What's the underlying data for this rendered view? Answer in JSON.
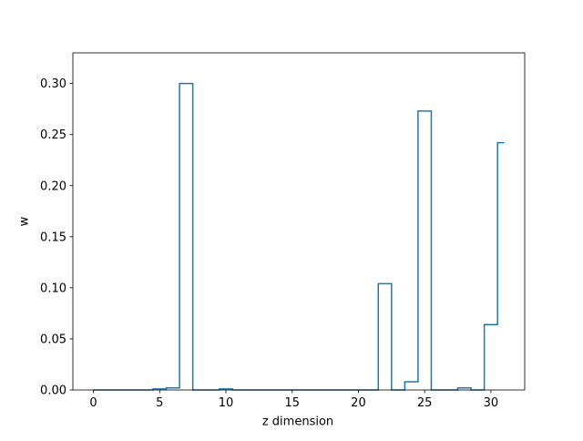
{
  "chart_data": {
    "type": "line",
    "drawstyle": "steps-mid",
    "title": "",
    "xlabel": "z dimension",
    "ylabel": "w",
    "xlim": [
      -1.55,
      32.55
    ],
    "ylim": [
      0,
      0.33
    ],
    "grid": false,
    "x_ticks": [
      0,
      5,
      10,
      15,
      20,
      25,
      30
    ],
    "x_tick_labels": [
      "0",
      "5",
      "10",
      "15",
      "20",
      "25",
      "30"
    ],
    "y_ticks": [
      0,
      0.05,
      0.1,
      0.15,
      0.2,
      0.25,
      0.3
    ],
    "y_tick_labels": [
      "0.00",
      "0.05",
      "0.10",
      "0.15",
      "0.20",
      "0.25",
      "0.30"
    ],
    "series": [
      {
        "color": "#1f77b4",
        "x": [
          0,
          1,
          2,
          3,
          4,
          5,
          6,
          7,
          8,
          9,
          10,
          11,
          12,
          13,
          14,
          15,
          16,
          17,
          18,
          19,
          20,
          21,
          22,
          23,
          24,
          25,
          26,
          27,
          28,
          29,
          30,
          31
        ],
        "y": [
          0,
          0,
          0,
          0,
          0,
          0.001,
          0.002,
          0.3,
          0,
          0,
          0.001,
          0,
          0,
          0,
          0,
          0,
          0,
          0,
          0,
          0,
          0,
          0,
          0.104,
          0,
          0.008,
          0.273,
          0,
          0,
          0.002,
          0,
          0.064,
          0.242
        ]
      }
    ]
  }
}
